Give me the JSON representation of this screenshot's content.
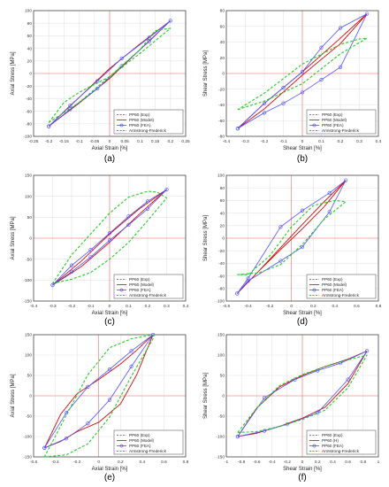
{
  "legend_style": {
    "exp": {
      "color": "#555555",
      "dash": "dashed"
    },
    "model": {
      "color": "#e00000",
      "dash": "solid"
    },
    "fea": {
      "color": "#5050ff",
      "marker": "circle"
    },
    "af": {
      "color": "#22cc22",
      "dash": "dashed"
    }
  },
  "chart_data": [
    {
      "type": "line",
      "caption": "(a)",
      "xlabel": "Axial Strain [%]",
      "ylabel": "Axial Stress [MPa]",
      "xlim": [
        -0.25,
        0.25
      ],
      "ylim": [
        -100,
        100
      ],
      "xticks": [
        "-0.25",
        "-0.2",
        "-0.15",
        "-0.1",
        "-0.05",
        "0",
        "0.05",
        "0.1",
        "0.15",
        "0.2",
        "0.25"
      ],
      "xtick_values": [
        -0.25,
        -0.2,
        -0.15,
        -0.1,
        -0.05,
        0,
        0.05,
        0.1,
        0.15,
        0.2,
        0.25
      ],
      "yticks": [
        "-100",
        "-80",
        "-60",
        "-40",
        "-20",
        "0",
        "20",
        "40",
        "60",
        "80",
        "100"
      ],
      "ytick_values": [
        -100,
        -80,
        -60,
        -40,
        -20,
        0,
        20,
        40,
        60,
        80,
        100
      ],
      "grid": true,
      "legend": [
        "PP60 (Exp)",
        "PP60 (Model)",
        "PP60 (FEA)",
        "Armstrong-Frederick"
      ],
      "legend_placement": "bottom-right",
      "series": [
        {
          "name": "PP60 (Exp)",
          "x": [
            -0.2,
            -0.1,
            0,
            0.1,
            0.2,
            0.1,
            0,
            -0.1,
            -0.2
          ],
          "y": [
            -84,
            -38,
            8,
            47,
            84,
            38,
            -8,
            -47,
            -84
          ]
        },
        {
          "name": "PP60 (Model)",
          "x": [
            -0.2,
            -0.1,
            0,
            0.1,
            0.2,
            0.1,
            0,
            -0.1,
            -0.2
          ],
          "y": [
            -84,
            -38,
            8,
            47,
            84,
            38,
            -8,
            -47,
            -84
          ]
        },
        {
          "name": "PP60 (FEA)",
          "x": [
            -0.2,
            -0.13,
            -0.04,
            0.04,
            0.13,
            0.2,
            0.13,
            0.04,
            -0.04,
            -0.13,
            -0.2
          ],
          "y": [
            -84,
            -51,
            -12,
            24,
            57,
            84,
            51,
            12,
            -24,
            -57,
            -84
          ]
        },
        {
          "name": "Armstrong-Frederick",
          "x": [
            -0.2,
            -0.15,
            -0.1,
            0,
            0.1,
            0.2,
            0.15,
            0.1,
            0,
            -0.1,
            -0.2
          ],
          "y": [
            -78,
            -46,
            -30,
            -5,
            32,
            72,
            68,
            38,
            -5,
            -46,
            -78
          ]
        }
      ]
    },
    {
      "type": "line",
      "caption": "(b)",
      "xlabel": "Shear Strain [%]",
      "ylabel": "Shear Stress [MPa]",
      "xlim": [
        -0.4,
        0.4
      ],
      "ylim": [
        -80,
        80
      ],
      "xticks": [
        "-0.4",
        "-0.3",
        "-0.2",
        "-0.1",
        "0",
        "0.1",
        "0.2",
        "0.3",
        "0.4"
      ],
      "xtick_values": [
        -0.4,
        -0.3,
        -0.2,
        -0.1,
        0,
        0.1,
        0.2,
        0.3,
        0.4
      ],
      "yticks": [
        "-80",
        "-60",
        "-40",
        "-20",
        "0",
        "20",
        "40",
        "60",
        "80"
      ],
      "ytick_values": [
        -80,
        -60,
        -40,
        -20,
        0,
        20,
        40,
        60,
        80
      ],
      "grid": true,
      "legend": [
        "PP60 (Exp)",
        "PP60 (Model)",
        "PP60 (FEA)",
        "Armstrong-Frederick"
      ],
      "legend_placement": "bottom-right",
      "series": [
        {
          "name": "PP60 (Exp)",
          "x": [
            -0.34,
            -0.2,
            0,
            0.2,
            0.34,
            0.2,
            0,
            -0.2,
            -0.34
          ],
          "y": [
            -70,
            -38,
            2,
            45,
            76,
            38,
            -2,
            -45,
            -70
          ]
        },
        {
          "name": "PP60 (Model)",
          "x": [
            -0.34,
            -0.2,
            0,
            0.2,
            0.34,
            0.2,
            0,
            -0.2,
            -0.34
          ],
          "y": [
            -70,
            -38,
            2,
            45,
            76,
            38,
            -2,
            -45,
            -70
          ]
        },
        {
          "name": "PP60 (FEA)",
          "x": [
            -0.34,
            -0.2,
            -0.1,
            0,
            0.1,
            0.2,
            0.34,
            0.2,
            0.1,
            0,
            -0.1,
            -0.2,
            -0.34
          ],
          "y": [
            -70,
            -50,
            -38,
            -24,
            -8,
            8,
            76,
            58,
            33,
            2,
            -18,
            -38,
            -70
          ]
        },
        {
          "name": "Armstrong-Frederick",
          "x": [
            -0.34,
            -0.2,
            0,
            0.2,
            0.34,
            0.3,
            0.2,
            0,
            -0.2,
            -0.34
          ],
          "y": [
            -46,
            -35,
            -13,
            25,
            45,
            44,
            37,
            12,
            -25,
            -46
          ]
        }
      ]
    },
    {
      "type": "line",
      "caption": "(c)",
      "xlabel": "Axial Strain [%]",
      "ylabel": "Axial Stress [MPa]",
      "xlim": [
        -0.4,
        0.4
      ],
      "ylim": [
        -150,
        150
      ],
      "xticks": [
        "-0.4",
        "-0.3",
        "-0.2",
        "-0.1",
        "0",
        "0.1",
        "0.2",
        "0.3",
        "0.4"
      ],
      "xtick_values": [
        -0.4,
        -0.3,
        -0.2,
        -0.1,
        0,
        0.1,
        0.2,
        0.3,
        0.4
      ],
      "yticks": [
        "-150",
        "-100",
        "-50",
        "0",
        "50",
        "100",
        "150"
      ],
      "ytick_values": [
        -150,
        -100,
        -50,
        0,
        50,
        100,
        150
      ],
      "grid": true,
      "legend": [
        "PP60 (Exp)",
        "PP60 (Model)",
        "PP60 (FEA)",
        "Armstrong-Frederick"
      ],
      "legend_placement": "bottom-right",
      "series": [
        {
          "name": "PP60 (Exp)",
          "x": [
            -0.3,
            -0.15,
            0,
            0.15,
            0.3,
            0.15,
            0,
            -0.15,
            -0.3
          ],
          "y": [
            -112,
            -55,
            10,
            68,
            116,
            55,
            -10,
            -68,
            -112
          ]
        },
        {
          "name": "PP60 (Model)",
          "x": [
            -0.3,
            -0.15,
            0,
            0.15,
            0.3,
            0.15,
            0,
            -0.15,
            -0.3
          ],
          "y": [
            -112,
            -55,
            10,
            68,
            116,
            55,
            -10,
            -68,
            -112
          ]
        },
        {
          "name": "PP60 (FEA)",
          "x": [
            -0.3,
            -0.2,
            -0.1,
            0,
            0.1,
            0.2,
            0.3,
            0.2,
            0.1,
            0,
            -0.1,
            -0.2,
            -0.3
          ],
          "y": [
            -112,
            -80,
            -45,
            -5,
            32,
            70,
            116,
            88,
            52,
            12,
            -28,
            -65,
            -112
          ]
        },
        {
          "name": "Armstrong-Frederick",
          "x": [
            -0.3,
            -0.2,
            -0.1,
            0,
            0.1,
            0.2,
            0.3,
            0.25,
            0.2,
            0.1,
            0,
            -0.1,
            -0.2,
            -0.3
          ],
          "y": [
            -108,
            -98,
            -82,
            -50,
            -10,
            42,
            96,
            110,
            112,
            98,
            60,
            10,
            -40,
            -108
          ]
        }
      ]
    },
    {
      "type": "line",
      "caption": "(d)",
      "xlabel": "Shear Strain [%]",
      "ylabel": "Shear Stress [MPa]",
      "xlim": [
        -0.6,
        0.8
      ],
      "ylim": [
        -100,
        100
      ],
      "xticks": [
        "-0.6",
        "-0.4",
        "-0.2",
        "0",
        "0.2",
        "0.4",
        "0.6",
        "0.8"
      ],
      "xtick_values": [
        -0.6,
        -0.4,
        -0.2,
        0,
        0.2,
        0.4,
        0.6,
        0.8
      ],
      "yticks": [
        "-100",
        "-80",
        "-60",
        "-40",
        "-20",
        "0",
        "20",
        "40",
        "60",
        "80",
        "100"
      ],
      "ytick_values": [
        -100,
        -80,
        -60,
        -40,
        -20,
        0,
        20,
        40,
        60,
        80,
        100
      ],
      "grid": true,
      "legend": [
        "PP60 (Exp)",
        "PP60 (Model)",
        "PP60 (FEA)",
        "Armstrong-Frederick"
      ],
      "legend_placement": "bottom-right",
      "series": [
        {
          "name": "PP60 (Exp)",
          "x": [
            -0.5,
            -0.3,
            -0.1,
            0.1,
            0.3,
            0.5,
            0.3,
            0.1,
            -0.1,
            -0.3,
            -0.5
          ],
          "y": [
            -88,
            -52,
            -18,
            15,
            50,
            92,
            58,
            22,
            -15,
            -52,
            -88
          ]
        },
        {
          "name": "PP60 (Model)",
          "x": [
            -0.5,
            -0.3,
            -0.1,
            0.1,
            0.3,
            0.5,
            0.3,
            0.1,
            -0.1,
            -0.3,
            -0.5
          ],
          "y": [
            -88,
            -52,
            -18,
            15,
            50,
            92,
            58,
            22,
            -15,
            -52,
            -88
          ]
        },
        {
          "name": "PP60 (FEA)",
          "x": [
            -0.5,
            -0.4,
            -0.1,
            0.1,
            0.35,
            0.5,
            0.35,
            0.1,
            -0.1,
            -0.4,
            -0.5
          ],
          "y": [
            -88,
            -68,
            -36,
            -14,
            42,
            92,
            72,
            44,
            18,
            -64,
            -88
          ]
        },
        {
          "name": "Armstrong-Frederick",
          "x": [
            -0.5,
            -0.3,
            -0.1,
            0.1,
            0.3,
            0.5,
            0.4,
            0.2,
            0,
            -0.2,
            -0.4,
            -0.5
          ],
          "y": [
            -58,
            -55,
            -42,
            -10,
            30,
            58,
            60,
            52,
            18,
            -28,
            -58,
            -58
          ]
        }
      ]
    },
    {
      "type": "line",
      "caption": "(e)",
      "xlabel": "Axial Strain [%]",
      "ylabel": "Axial Stress [MPa]",
      "xlim": [
        -0.6,
        0.8
      ],
      "ylim": [
        -150,
        150
      ],
      "xticks": [
        "-0.6",
        "-0.4",
        "-0.2",
        "0",
        "0.2",
        "0.4",
        "0.6",
        "0.8"
      ],
      "xtick_values": [
        -0.6,
        -0.4,
        -0.2,
        0,
        0.2,
        0.4,
        0.6,
        0.8
      ],
      "yticks": [
        "-150",
        "-100",
        "-50",
        "0",
        "50",
        "100",
        "150"
      ],
      "ytick_values": [
        -150,
        -100,
        -50,
        0,
        50,
        100,
        150
      ],
      "grid": true,
      "legend": [
        "PP60 (Exp)",
        "PP60 (Model)",
        "PP60 (FEA)",
        "Armstrong-Frederick"
      ],
      "legend_placement": "bottom-right",
      "series": [
        {
          "name": "PP60 (Exp)",
          "x": [
            -0.5,
            -0.35,
            -0.2,
            0,
            0.2,
            0.35,
            0.5,
            0.35,
            0.2,
            0,
            -0.2,
            -0.35,
            -0.5
          ],
          "y": [
            -128,
            -112,
            -88,
            -65,
            -20,
            52,
            150,
            112,
            78,
            40,
            5,
            -45,
            -128
          ]
        },
        {
          "name": "PP60 (Model)",
          "x": [
            -0.5,
            -0.35,
            -0.2,
            0,
            0.2,
            0.35,
            0.5,
            0.35,
            0.2,
            0,
            -0.2,
            -0.35,
            -0.5
          ],
          "y": [
            -128,
            -112,
            -88,
            -65,
            -20,
            52,
            150,
            112,
            78,
            40,
            5,
            -45,
            -128
          ]
        },
        {
          "name": "PP60 (FEA)",
          "x": [
            -0.5,
            -0.3,
            -0.1,
            0.1,
            0.3,
            0.5,
            0.3,
            0.1,
            -0.1,
            -0.3,
            -0.5
          ],
          "y": [
            -128,
            -105,
            -68,
            -10,
            72,
            150,
            110,
            65,
            22,
            -42,
            -128
          ]
        },
        {
          "name": "Armstrong-Frederick",
          "x": [
            -0.5,
            -0.3,
            -0.1,
            0.1,
            0.3,
            0.5,
            0.5,
            0.3,
            0.1,
            -0.1,
            -0.3,
            -0.5
          ],
          "y": [
            -150,
            -145,
            -118,
            -52,
            48,
            140,
            150,
            140,
            118,
            52,
            -48,
            -150
          ]
        }
      ]
    },
    {
      "type": "line",
      "caption": "(f)",
      "xlabel": "Shear Strain [%]",
      "ylabel": "Shear Stress [MPa]",
      "xlim": [
        -1,
        1
      ],
      "ylim": [
        -150,
        150
      ],
      "xticks": [
        "-1",
        "-0.8",
        "-0.6",
        "-0.4",
        "-0.2",
        "0",
        "0.2",
        "0.4",
        "0.6",
        "0.8",
        "1"
      ],
      "xtick_values": [
        -1,
        -0.8,
        -0.6,
        -0.4,
        -0.2,
        0,
        0.2,
        0.4,
        0.6,
        0.8,
        1
      ],
      "yticks": [
        "-150",
        "-100",
        "-50",
        "0",
        "50",
        "100",
        "150"
      ],
      "ytick_values": [
        -150,
        -100,
        -50,
        0,
        50,
        100,
        150
      ],
      "grid": true,
      "legend": [
        "PP60 (Exp)",
        "PP60 (H)",
        "PP60 (FEA)",
        "Armstrong-Frederick"
      ],
      "legend_placement": "bottom-right",
      "series": [
        {
          "name": "PP60 (Exp)",
          "x": [
            -0.85,
            -0.6,
            -0.3,
            0,
            0.3,
            0.6,
            0.85,
            0.6,
            0.3,
            0,
            -0.3,
            -0.6,
            -0.85
          ],
          "y": [
            -100,
            -30,
            22,
            50,
            72,
            90,
            110,
            30,
            -28,
            -55,
            -75,
            -92,
            -100
          ]
        },
        {
          "name": "PP60 (H)",
          "x": [
            -0.85,
            -0.6,
            -0.3,
            0,
            0.3,
            0.6,
            0.85,
            0.6,
            0.3,
            0,
            -0.3,
            -0.6,
            -0.85
          ],
          "y": [
            -100,
            -30,
            22,
            50,
            72,
            90,
            110,
            30,
            -28,
            -55,
            -75,
            -92,
            -100
          ]
        },
        {
          "name": "PP60 (FEA)",
          "x": [
            -0.85,
            -0.5,
            -0.1,
            0.2,
            0.5,
            0.85,
            0.6,
            0.2,
            -0.2,
            -0.5,
            -0.85
          ],
          "y": [
            -100,
            -5,
            40,
            62,
            80,
            110,
            40,
            -42,
            -70,
            -86,
            -100
          ]
        },
        {
          "name": "Armstrong-Frederick",
          "x": [
            -0.85,
            -0.6,
            -0.3,
            0,
            0.3,
            0.6,
            0.85,
            0.6,
            0.3,
            0,
            -0.3,
            -0.6,
            -0.85
          ],
          "y": [
            -90,
            -30,
            25,
            52,
            72,
            88,
            100,
            20,
            -35,
            -58,
            -75,
            -88,
            -90
          ]
        }
      ]
    }
  ]
}
